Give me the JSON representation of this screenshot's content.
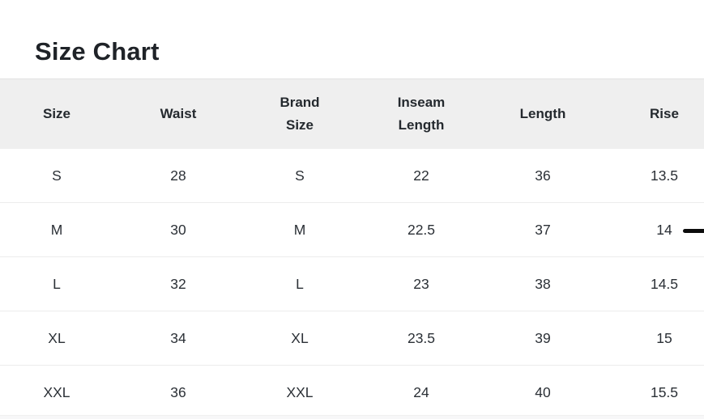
{
  "title": "Size Chart",
  "table": {
    "columns": [
      "Size",
      "Waist",
      "Brand Size",
      "Inseam Length",
      "Length",
      "Rise"
    ],
    "rows": [
      [
        "S",
        "28",
        "S",
        "22",
        "36",
        "13.5"
      ],
      [
        "M",
        "30",
        "M",
        "22.5",
        "37",
        "14"
      ],
      [
        "L",
        "32",
        "L",
        "23",
        "38",
        "14.5"
      ],
      [
        "XL",
        "34",
        "XL",
        "23.5",
        "39",
        "15"
      ],
      [
        "XXL",
        "36",
        "XXL",
        "24",
        "40",
        "15.5"
      ]
    ]
  },
  "colors": {
    "header_background": "#efefef",
    "row_divider": "#ececec",
    "title_text": "#1f2328",
    "body_text": "#2b3036",
    "scroll_indicator": "#0c0c0c"
  },
  "icons": {
    "scroll_indicator": "horizontal-black-dash"
  }
}
